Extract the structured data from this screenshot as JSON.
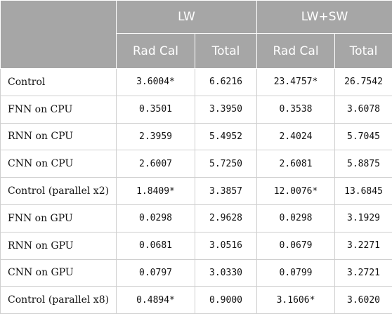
{
  "header": {
    "groups": [
      "LW",
      "LW+SW"
    ],
    "subcolumns": [
      "Rad Cal",
      "Total",
      "Rad Cal",
      "Total"
    ]
  },
  "rows": [
    {
      "label": "Control",
      "values": [
        "3.6004*",
        "6.6216",
        "23.4757*",
        "26.7542"
      ]
    },
    {
      "label": "FNN on CPU",
      "values": [
        "0.3501",
        "3.3950",
        "0.3538",
        "3.6078"
      ]
    },
    {
      "label": "RNN on CPU",
      "values": [
        "2.3959",
        "5.4952",
        "2.4024",
        "5.7045"
      ]
    },
    {
      "label": "CNN on CPU",
      "values": [
        "2.6007",
        "5.7250",
        "2.6081",
        "5.8875"
      ]
    },
    {
      "label": "Control (parallel x2)",
      "values": [
        "1.8409*",
        "3.3857",
        "12.0076*",
        "13.6845"
      ]
    },
    {
      "label": "FNN on GPU",
      "values": [
        "0.0298",
        "2.9628",
        "0.0298",
        "3.1929"
      ]
    },
    {
      "label": "RNN on GPU",
      "values": [
        "0.0681",
        "3.0516",
        "0.0679",
        "3.2271"
      ]
    },
    {
      "label": "CNN on GPU",
      "values": [
        "0.0797",
        "3.0330",
        "0.0799",
        "3.2721"
      ]
    },
    {
      "label": "Control (parallel x8)",
      "values": [
        "0.4894*",
        "0.9000",
        "3.1606*",
        "3.6020"
      ]
    }
  ]
}
